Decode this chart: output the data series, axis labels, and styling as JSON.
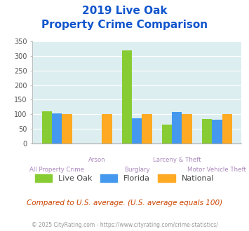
{
  "title_line1": "2019 Live Oak",
  "title_line2": "Property Crime Comparison",
  "categories": [
    "All Property Crime",
    "Arson",
    "Burglary",
    "Larceny & Theft",
    "Motor Vehicle Theft"
  ],
  "live_oak": [
    110,
    0,
    320,
    65,
    83
  ],
  "florida": [
    102,
    0,
    87,
    108,
    82
  ],
  "national": [
    100,
    100,
    100,
    100,
    100
  ],
  "color_live_oak": "#88cc33",
  "color_florida": "#4499ee",
  "color_national": "#ffaa22",
  "color_bg": "#ddeef0",
  "ylim": [
    0,
    350
  ],
  "yticks": [
    0,
    50,
    100,
    150,
    200,
    250,
    300,
    350
  ],
  "footnote": "Compared to U.S. average. (U.S. average equals 100)",
  "copyright": "© 2025 CityRating.com - https://www.cityrating.com/crime-statistics/",
  "title_color": "#1155cc",
  "footnote_color": "#cc4400",
  "copyright_color": "#999999"
}
